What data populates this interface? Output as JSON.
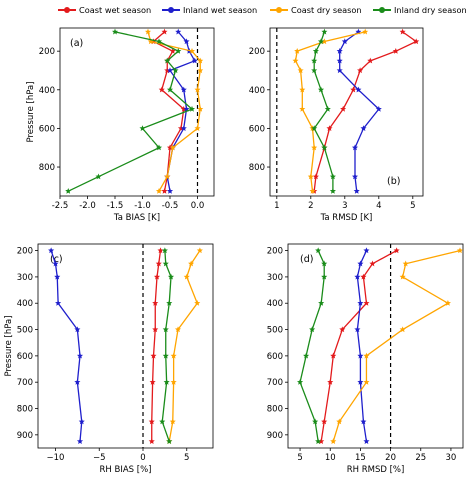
{
  "legend": [
    {
      "name": "Coast wet season",
      "color": "#e31a1c"
    },
    {
      "name": "Inland wet season",
      "color": "#1f1fcc"
    },
    {
      "name": "Coast dry season",
      "color": "#ffa500"
    },
    {
      "name": "Inland dry season",
      "color": "#1a8c1a"
    }
  ],
  "chart_data": [
    {
      "panel": "a",
      "panel_label": "(a)",
      "type": "line",
      "xlabel": "Ta BIAS [K]",
      "ylabel": "Pressure [hPa]",
      "xlim": [
        -2.5,
        0.3
      ],
      "ylim": [
        950,
        80
      ],
      "xticks": [
        -2.5,
        -2.0,
        -1.5,
        -1.0,
        -0.5,
        0.0
      ],
      "xticklabels": [
        "-2.5",
        "-2.0",
        "-1.5",
        "-1.0",
        "-0.5",
        "0.0"
      ],
      "yticks": [
        200,
        400,
        600,
        800
      ],
      "yticklabels": [
        "200",
        "400",
        "600",
        "800"
      ],
      "refline": 0.0,
      "series": [
        {
          "name": "Coast wet season",
          "color": "#e31a1c",
          "y": [
            100,
            150,
            200,
            250,
            300,
            400,
            500,
            600,
            700,
            850,
            925
          ],
          "x": [
            -0.6,
            -0.8,
            -0.45,
            -0.55,
            -0.55,
            -0.65,
            -0.25,
            -0.3,
            -0.5,
            -0.55,
            -0.6
          ]
        },
        {
          "name": "Inland wet season",
          "color": "#1f1fcc",
          "y": [
            100,
            150,
            200,
            250,
            300,
            400,
            500,
            600,
            700,
            850,
            925
          ],
          "x": [
            -0.35,
            -0.2,
            -0.15,
            -0.05,
            -0.5,
            -0.25,
            -0.2,
            -0.25,
            -0.45,
            -0.55,
            -0.5
          ]
        },
        {
          "name": "Coast dry season",
          "color": "#ffa500",
          "y": [
            100,
            150,
            200,
            250,
            300,
            400,
            500,
            600,
            700,
            850,
            925
          ],
          "x": [
            -0.9,
            -0.85,
            -0.1,
            0.05,
            0.05,
            0.0,
            0.05,
            0.0,
            -0.45,
            -0.55,
            -0.7
          ]
        },
        {
          "name": "Inland dry season",
          "color": "#1a8c1a",
          "y": [
            100,
            150,
            200,
            250,
            300,
            400,
            500,
            600,
            700,
            850,
            925
          ],
          "x": [
            -1.5,
            -0.7,
            -0.35,
            -0.55,
            -0.4,
            -0.5,
            -0.1,
            -1.0,
            -0.7,
            -1.8,
            -2.35
          ]
        }
      ]
    },
    {
      "panel": "b",
      "panel_label": "(b)",
      "type": "line",
      "xlabel": "Ta RMSD [K]",
      "ylabel": "",
      "xlim": [
        0.8,
        5.3
      ],
      "ylim": [
        950,
        80
      ],
      "xticks": [
        1,
        2,
        3,
        4,
        5
      ],
      "xticklabels": [
        "1",
        "2",
        "3",
        "4",
        "5"
      ],
      "yticks": [
        200,
        400,
        600,
        800
      ],
      "yticklabels": [
        "200",
        "400",
        "600",
        "800"
      ],
      "refline": 1.0,
      "series": [
        {
          "name": "Coast wet season",
          "color": "#e31a1c",
          "y": [
            100,
            150,
            200,
            250,
            300,
            400,
            500,
            600,
            700,
            850,
            925
          ],
          "x": [
            4.7,
            5.1,
            4.5,
            3.75,
            3.45,
            3.25,
            2.95,
            2.55,
            2.4,
            2.15,
            2.1
          ]
        },
        {
          "name": "Inland wet season",
          "color": "#1f1fcc",
          "y": [
            100,
            150,
            200,
            250,
            300,
            400,
            500,
            600,
            700,
            850,
            925
          ],
          "x": [
            3.4,
            3.0,
            2.85,
            2.85,
            2.85,
            3.4,
            4.0,
            3.55,
            3.3,
            3.3,
            3.35
          ]
        },
        {
          "name": "Coast dry season",
          "color": "#ffa500",
          "y": [
            100,
            150,
            200,
            250,
            300,
            400,
            500,
            600,
            700,
            850,
            925
          ],
          "x": [
            3.6,
            2.4,
            1.6,
            1.55,
            1.7,
            1.75,
            1.75,
            2.05,
            2.1,
            2.0,
            2.05
          ]
        },
        {
          "name": "Inland dry season",
          "color": "#1a8c1a",
          "y": [
            100,
            150,
            200,
            250,
            300,
            400,
            500,
            600,
            700,
            850,
            925
          ],
          "x": [
            2.4,
            2.3,
            2.15,
            2.1,
            2.1,
            2.3,
            2.5,
            2.1,
            2.4,
            2.65,
            2.65
          ]
        }
      ]
    },
    {
      "panel": "c",
      "panel_label": "(c)",
      "type": "line",
      "xlabel": "RH BIAS [%]",
      "ylabel": "Pressure [hPa]",
      "xlim": [
        -12,
        8
      ],
      "ylim": [
        950,
        175
      ],
      "xticks": [
        -10,
        -5,
        0,
        5
      ],
      "xticklabels": [
        "−10",
        "−5",
        "0",
        "5"
      ],
      "yticks": [
        200,
        300,
        400,
        500,
        600,
        700,
        800,
        900
      ],
      "yticklabels": [
        "200",
        "300",
        "400",
        "500",
        "600",
        "700",
        "800",
        "900"
      ],
      "refline": 0.0,
      "series": [
        {
          "name": "Coast wet season",
          "color": "#e31a1c",
          "y": [
            200,
            250,
            300,
            400,
            500,
            600,
            700,
            850,
            925
          ],
          "x": [
            2.0,
            1.8,
            1.6,
            1.4,
            1.4,
            1.2,
            1.1,
            1.0,
            1.0
          ]
        },
        {
          "name": "Inland wet season",
          "color": "#1f1fcc",
          "y": [
            200,
            250,
            300,
            400,
            500,
            600,
            700,
            850,
            925
          ],
          "x": [
            -10.5,
            -10.0,
            -9.8,
            -9.7,
            -7.5,
            -7.2,
            -7.5,
            -7.0,
            -7.2
          ]
        },
        {
          "name": "Coast dry season",
          "color": "#ffa500",
          "y": [
            200,
            250,
            300,
            400,
            500,
            600,
            700,
            850,
            925
          ],
          "x": [
            6.5,
            5.5,
            5.0,
            6.2,
            4.0,
            3.5,
            3.5,
            3.4,
            3.0
          ]
        },
        {
          "name": "Inland dry season",
          "color": "#1a8c1a",
          "y": [
            200,
            250,
            300,
            400,
            500,
            600,
            700,
            850,
            925
          ],
          "x": [
            2.5,
            2.6,
            3.2,
            3.0,
            2.6,
            2.6,
            2.7,
            2.2,
            3.0
          ]
        }
      ]
    },
    {
      "panel": "d",
      "panel_label": "(d)",
      "type": "line",
      "xlabel": "RH RMSD [%]",
      "ylabel": "",
      "xlim": [
        3,
        32
      ],
      "ylim": [
        950,
        175
      ],
      "xticks": [
        5,
        10,
        15,
        20,
        25,
        30
      ],
      "xticklabels": [
        "5",
        "10",
        "15",
        "20",
        "25",
        "30"
      ],
      "yticks": [
        200,
        300,
        400,
        500,
        600,
        700,
        800,
        900
      ],
      "yticklabels": [
        "200",
        "300",
        "400",
        "500",
        "600",
        "700",
        "800",
        "900"
      ],
      "refline": 20.0,
      "series": [
        {
          "name": "Coast wet season",
          "color": "#e31a1c",
          "y": [
            200,
            250,
            300,
            400,
            500,
            600,
            700,
            850,
            925
          ],
          "x": [
            21.0,
            17.0,
            15.5,
            16.0,
            12.0,
            10.5,
            10.0,
            9.0,
            8.5
          ]
        },
        {
          "name": "Inland wet season",
          "color": "#1f1fcc",
          "y": [
            200,
            250,
            300,
            400,
            500,
            600,
            700,
            850,
            925
          ],
          "x": [
            16.0,
            15.0,
            14.5,
            15.0,
            14.5,
            15.0,
            15.0,
            15.5,
            16.0
          ]
        },
        {
          "name": "Coast dry season",
          "color": "#ffa500",
          "y": [
            200,
            250,
            300,
            400,
            500,
            600,
            700,
            850,
            925
          ],
          "x": [
            31.5,
            22.5,
            22.0,
            29.5,
            22.0,
            16.0,
            16.0,
            11.5,
            10.5
          ]
        },
        {
          "name": "Inland dry season",
          "color": "#1a8c1a",
          "y": [
            200,
            250,
            300,
            400,
            500,
            600,
            700,
            850,
            925
          ],
          "x": [
            8.0,
            9.0,
            9.0,
            8.5,
            7.0,
            6.0,
            5.0,
            7.5,
            8.0
          ]
        }
      ]
    }
  ]
}
